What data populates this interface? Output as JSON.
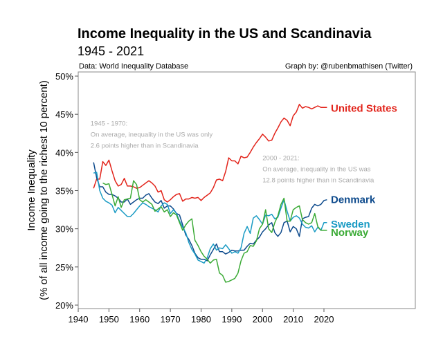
{
  "chart_data": {
    "type": "line",
    "title": "Income Inequality in the US and Scandinavia",
    "subtitle": "1945 - 2021",
    "source": "Data: World Inequality Database",
    "credit": "Graph by: @rubenbmathisen (Twitter)",
    "xlabel": "",
    "ylabel": [
      "Income Inequality",
      "(% of all income going to the richest 10 percent)"
    ],
    "xlim": [
      1940,
      2030
    ],
    "ylim": [
      20,
      50
    ],
    "xticks": [
      1940,
      1950,
      1960,
      1970,
      1980,
      1990,
      2000,
      2010,
      2020
    ],
    "yticks": [
      20,
      25,
      30,
      35,
      40,
      45,
      50
    ],
    "ytick_labels": [
      "20%",
      "25%",
      "30%",
      "35%",
      "40%",
      "45%",
      "50%"
    ],
    "grid": false,
    "annotations": [
      {
        "lines": [
          "1945 - 1970:",
          "On average, inequality in the US was only",
          "2.6 points higher than in Scandinavia"
        ],
        "x": 1944,
        "y": 43.5
      },
      {
        "lines": [
          "2000 - 2021:",
          "On average, inequality in the US was",
          "12.8 points higher than in Scandinavia"
        ],
        "x": 2000,
        "y": 39.0
      }
    ],
    "series": [
      {
        "name": "United States",
        "color": "#e2231a",
        "label_y": 45.8,
        "start": 1945,
        "values": [
          35.3,
          36.5,
          36.5,
          38.8,
          38.3,
          39.0,
          37.6,
          36.3,
          35.6,
          35.8,
          36.6,
          35.6,
          35.6,
          35.5,
          35.3,
          35.4,
          35.7,
          36.0,
          36.3,
          36.0,
          35.6,
          34.8,
          35.0,
          33.8,
          33.5,
          33.8,
          34.2,
          34.5,
          34.6,
          33.6,
          33.9,
          33.9,
          34.1,
          34.0,
          34.1,
          33.7,
          34.1,
          34.4,
          34.7,
          35.4,
          36.4,
          36.5,
          36.3,
          37.5,
          39.3,
          38.9,
          38.9,
          38.5,
          39.5,
          39.3,
          39.4,
          40.0,
          40.7,
          41.3,
          41.8,
          42.4,
          42.0,
          41.5,
          41.6,
          42.5,
          43.2,
          44.0,
          44.5,
          44.2,
          43.5,
          44.8,
          45.3,
          46.3,
          45.8,
          46.0,
          45.9,
          45.7,
          45.9,
          46.1,
          45.9,
          45.9,
          45.9
        ]
      },
      {
        "name": "Denmark",
        "color": "#0d4a8c",
        "label_y": 33.8,
        "start": 1945,
        "values": [
          38.7,
          36.7,
          35.5,
          35.5,
          34.8,
          34.5,
          34.5,
          34.3,
          34.0,
          33.5,
          33.5,
          33.9,
          33.2,
          33.5,
          33.8,
          34.0,
          34.0,
          34.4,
          34.6,
          34.0,
          33.5,
          33.3,
          33.7,
          32.7,
          33.0,
          33.0,
          32.6,
          32.0,
          31.8,
          30.5,
          29.2,
          28.6,
          27.8,
          26.8,
          26.2,
          26.0,
          26.0,
          25.8,
          26.6,
          27.3,
          28.0,
          27.0,
          27.0,
          26.7,
          26.9,
          27.2,
          27.1,
          27.1,
          27.2,
          27.2,
          27.7,
          28.1,
          28.0,
          28.5,
          28.9,
          29.6,
          30.0,
          30.5,
          30.8,
          29.5,
          29.0,
          29.5,
          30.8,
          31.0,
          29.6,
          30.3,
          30.0,
          29.0,
          31.3,
          31.5,
          31.6,
          32.7,
          33.2,
          33.0,
          33.2,
          33.7,
          33.8
        ]
      },
      {
        "name": "Sweden",
        "color": "#1a9bc4",
        "label_y": 30.6,
        "start": 1945,
        "values": [
          37.3,
          37.4,
          35.0,
          34.0,
          33.6,
          33.4,
          33.1,
          32.1,
          32.8,
          32.4,
          32.0,
          31.6,
          31.6,
          32.0,
          32.5,
          33.0,
          33.4,
          33.2,
          32.9,
          32.7,
          32.5,
          32.2,
          33.0,
          33.4,
          33.2,
          32.0,
          32.5,
          32.0,
          31.0,
          30.2,
          29.5,
          28.2,
          27.3,
          26.7,
          25.9,
          25.7,
          25.5,
          26.2,
          27.4,
          28.0,
          27.2,
          27.5,
          27.4,
          27.9,
          27.4,
          26.8,
          27.0,
          26.8,
          27.5,
          29.4,
          30.3,
          29.4,
          31.4,
          31.7,
          31.2,
          30.6,
          31.8,
          31.7,
          31.9,
          31.3,
          31.5,
          32.7,
          33.8,
          32.3,
          31.0,
          31.5,
          31.7,
          31.4,
          30.6,
          30.2,
          30.1,
          30.4,
          29.6,
          30.2,
          29.8,
          30.8,
          30.8
        ]
      },
      {
        "name": "Norway",
        "color": "#3aaa35",
        "label_y": 29.5,
        "start": 1948,
        "values": [
          36.0,
          35.8,
          35.9,
          34.5,
          33.0,
          34.2,
          32.8,
          33.8,
          33.9,
          34.0,
          36.3,
          35.8,
          33.8,
          33.5,
          33.8,
          33.5,
          33.2,
          32.3,
          32.6,
          32.9,
          32.2,
          32.5,
          31.6,
          32.1,
          31.8,
          30.8,
          29.8,
          30.5,
          31.0,
          31.3,
          28.5,
          27.8,
          27.0,
          26.4,
          26.0,
          25.5,
          25.9,
          26.0,
          24.2,
          23.9,
          23.0,
          23.1,
          23.3,
          23.5,
          24.2,
          25.8,
          26.8,
          27.0,
          27.8,
          27.7,
          28.4,
          30.0,
          30.6,
          32.5,
          30.0,
          29.5,
          30.8,
          31.7,
          33.2,
          34.0,
          31.0,
          31.0,
          32.5,
          32.8,
          33.0,
          31.2,
          30.8,
          30.6,
          30.8,
          32.0,
          30.3,
          29.8,
          29.8,
          29.8
        ]
      }
    ]
  }
}
